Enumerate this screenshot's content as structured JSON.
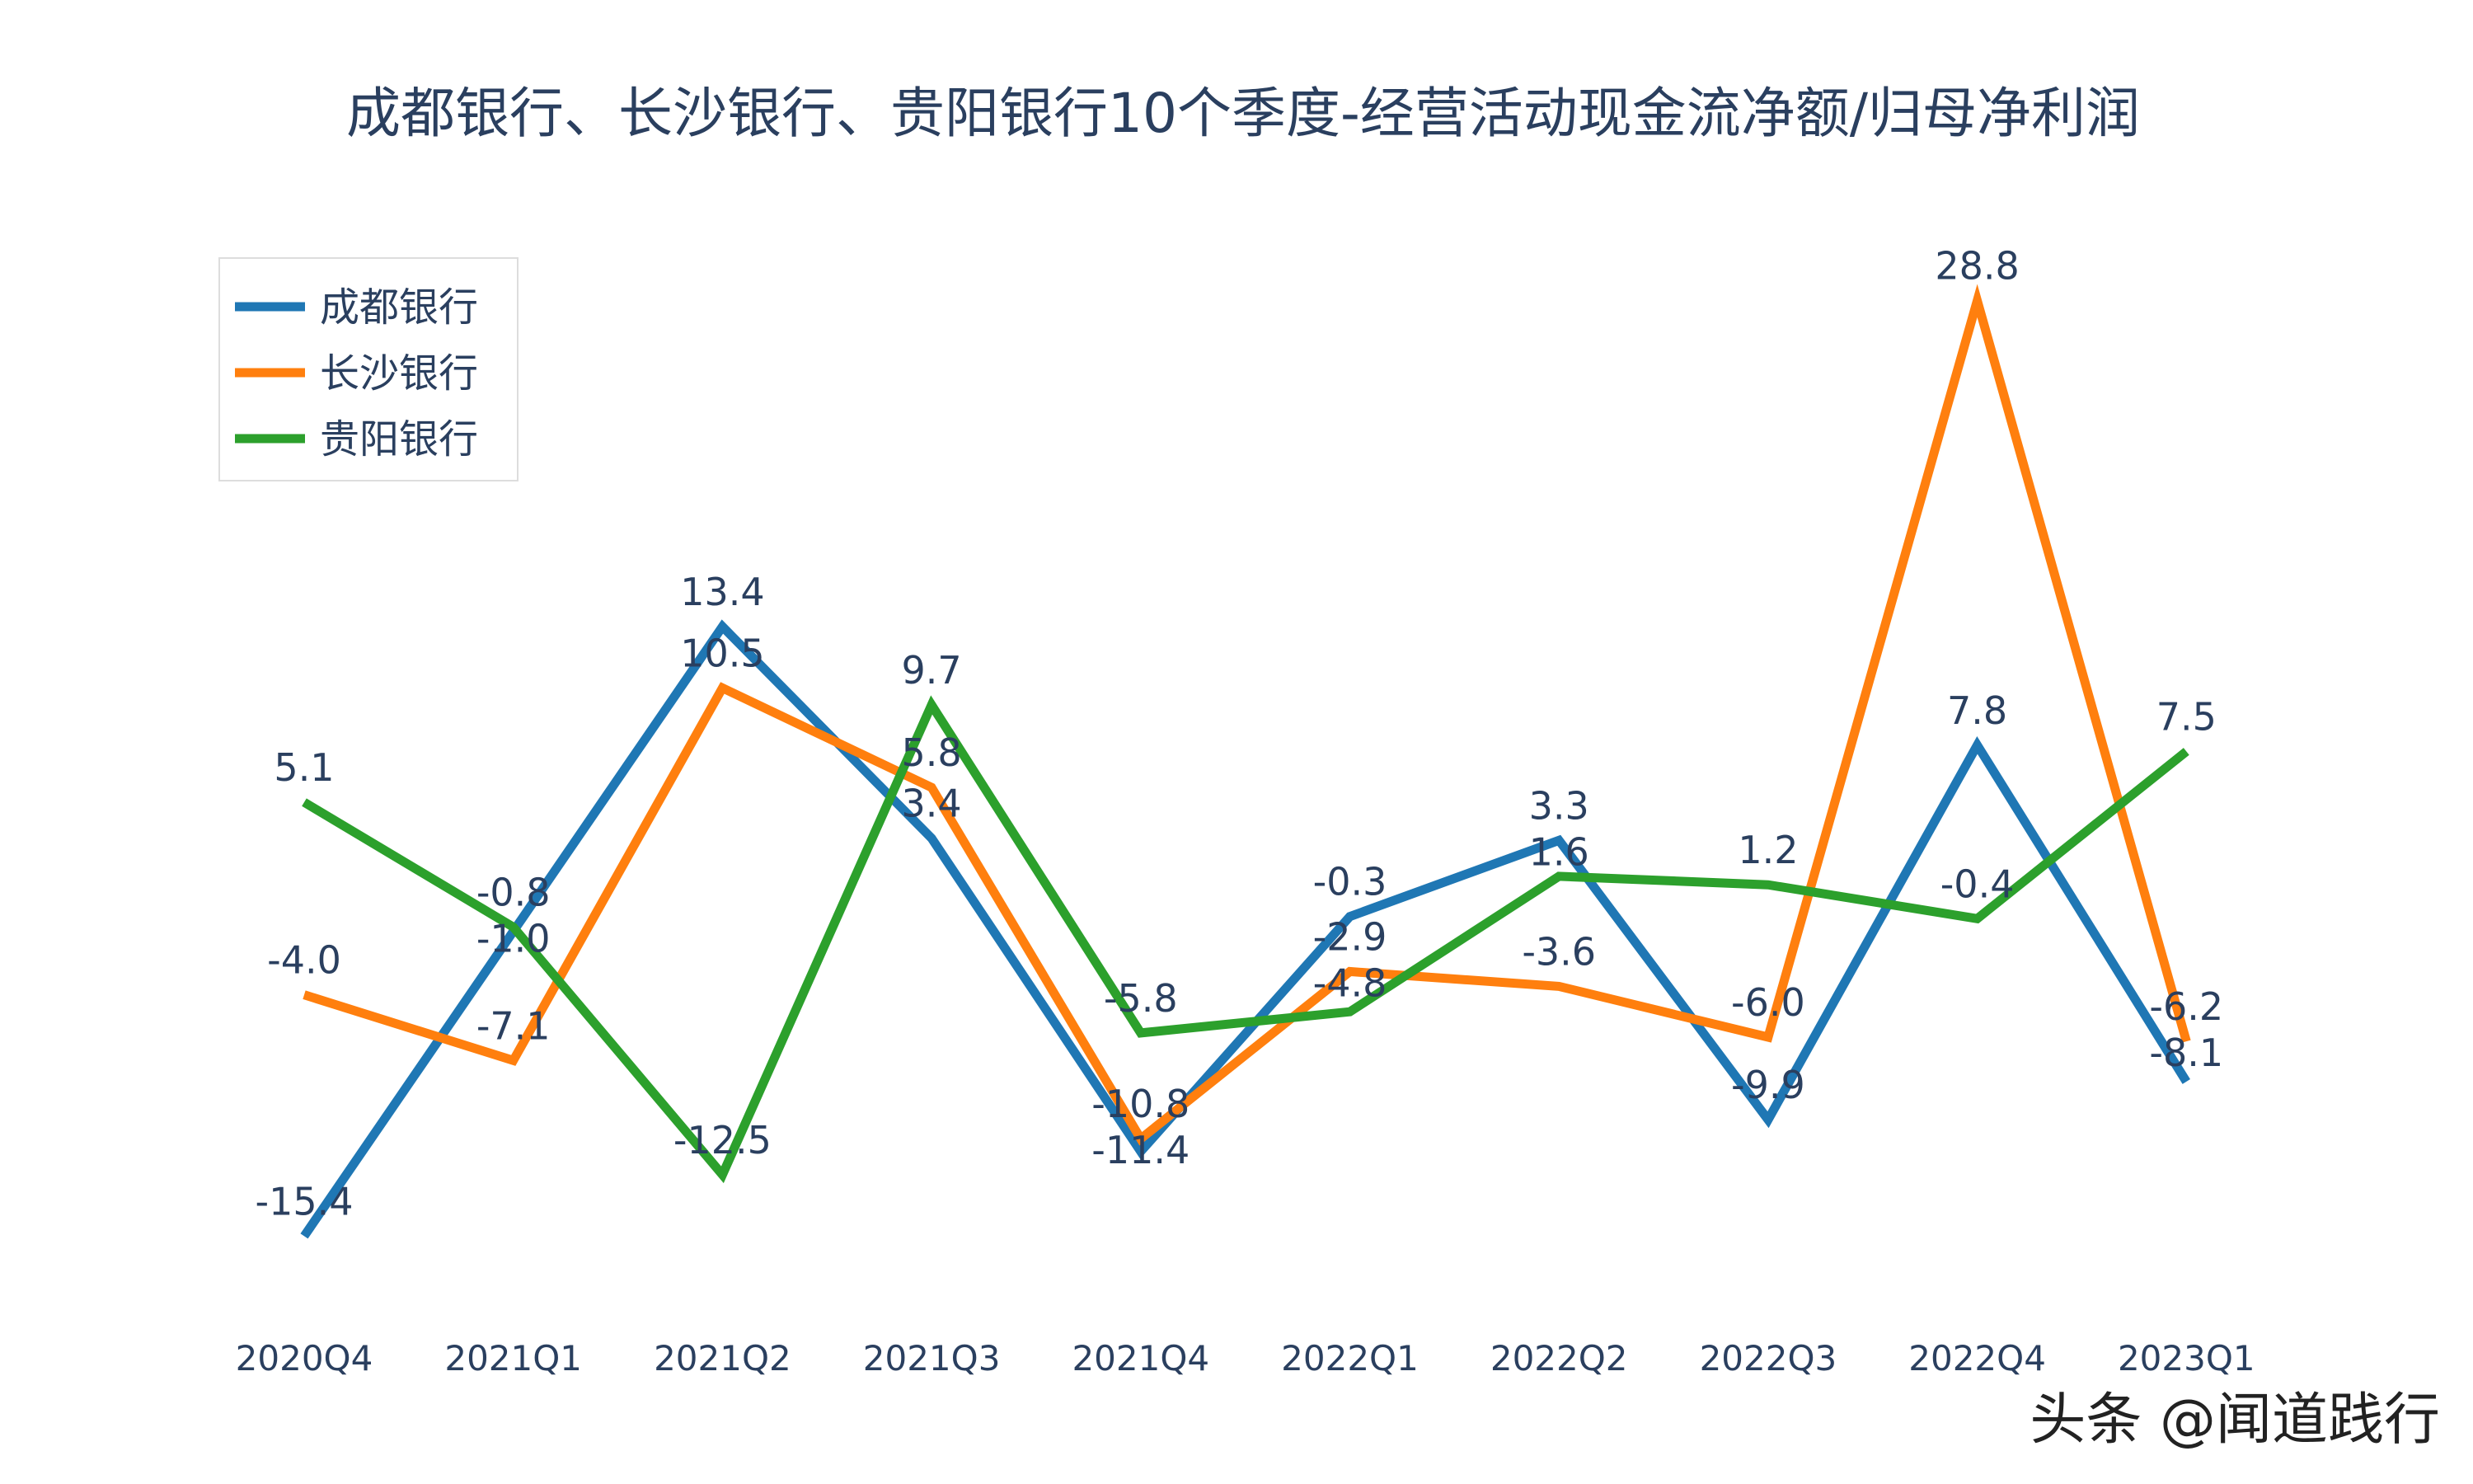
{
  "chart_data": {
    "type": "line",
    "title": "成都银行、长沙银行、贵阳银行10个季度-经营活动现金流净额/归母净利润",
    "categories": [
      "2020Q4",
      "2021Q1",
      "2021Q2",
      "2021Q3",
      "2021Q4",
      "2022Q1",
      "2022Q2",
      "2022Q3",
      "2022Q4",
      "2023Q1"
    ],
    "series": [
      {
        "name": "成都银行",
        "color": "#1f77b4",
        "values": [
          -15.4,
          -1.0,
          13.4,
          3.4,
          -11.4,
          -0.3,
          3.3,
          -9.9,
          7.8,
          -8.1
        ]
      },
      {
        "name": "长沙银行",
        "color": "#ff7f0e",
        "values": [
          -4.0,
          -7.1,
          10.5,
          5.8,
          -10.8,
          -2.9,
          -3.6,
          -6.0,
          28.8,
          -6.2
        ]
      },
      {
        "name": "贵阳银行",
        "color": "#2ca02c",
        "values": [
          5.1,
          -0.8,
          -12.5,
          9.7,
          -5.8,
          -4.8,
          1.6,
          1.2,
          -0.4,
          7.5
        ]
      }
    ],
    "xlabel": "",
    "ylabel": "",
    "grid": false,
    "y_axis_visible": false,
    "data_labels": true,
    "legend_position": "top-left"
  },
  "watermark": "头条 @闻道践行"
}
